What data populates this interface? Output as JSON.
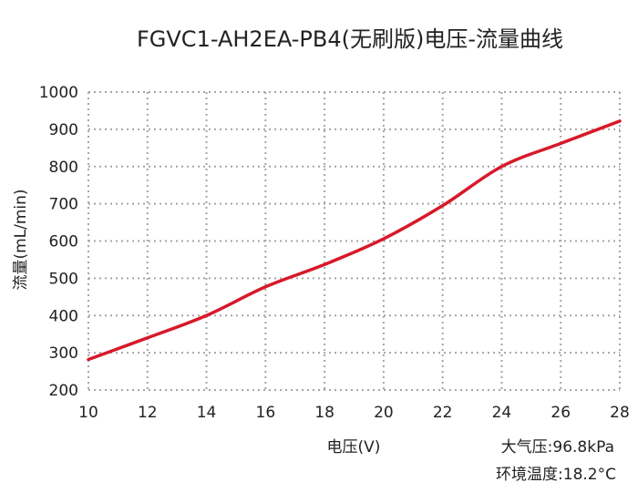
{
  "chart_data": {
    "type": "line",
    "title": "FGVC1-AH2EA-PB4(无刷版)电压-流量曲线",
    "xlabel": "电压(V)",
    "ylabel": "流量(mL/min)",
    "xlim": [
      10,
      28
    ],
    "ylim": [
      200,
      1000
    ],
    "x_ticks": [
      "10",
      "12",
      "14",
      "16",
      "18",
      "20",
      "22",
      "24",
      "26",
      "28"
    ],
    "y_ticks": [
      "200",
      "300",
      "400",
      "500",
      "600",
      "700",
      "800",
      "900",
      "1000"
    ],
    "grid": true,
    "series": [
      {
        "color": "#d7192a",
        "points": [
          [
            10,
            282
          ],
          [
            12,
            340
          ],
          [
            14,
            400
          ],
          [
            16,
            477
          ],
          [
            18,
            537
          ],
          [
            20,
            606
          ],
          [
            22,
            695
          ],
          [
            24,
            800
          ],
          [
            26,
            862
          ],
          [
            28,
            922
          ]
        ]
      }
    ],
    "annotations": [
      "大气压:96.8kPa",
      "环境温度:18.2°C"
    ]
  }
}
